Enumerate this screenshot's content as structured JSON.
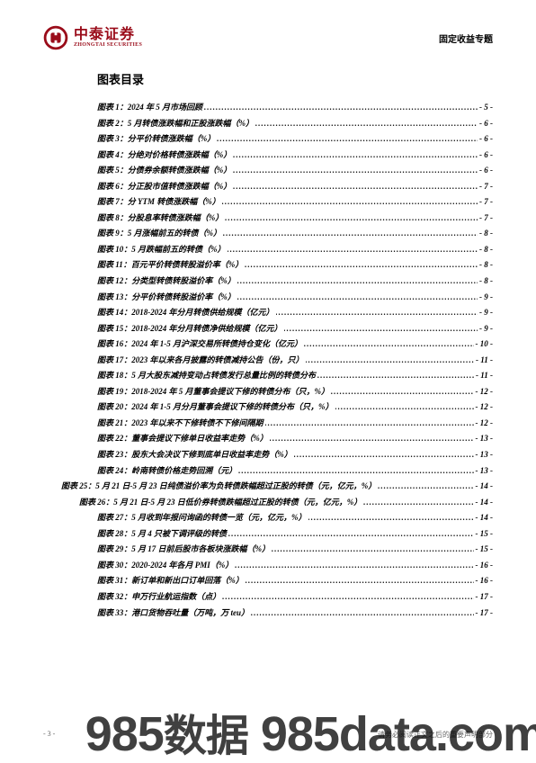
{
  "brand": {
    "cn": "中泰证券",
    "en": "ZHONGTAI SECURITIES",
    "color": "#9a0c1a"
  },
  "header": {
    "doctype": "固定收益专题"
  },
  "toc": {
    "title": "图表目录",
    "entries": [
      {
        "label": "图表 1：2024 年 5 月市场回顾",
        "page": "- 5 -",
        "outdent": 0
      },
      {
        "label": "图表 2：5 月转债涨跌幅和正股涨跌幅（%）",
        "page": "- 6 -",
        "outdent": 0
      },
      {
        "label": "图表 3：分平价转债涨跌幅（%）",
        "page": "- 6 -",
        "outdent": 0
      },
      {
        "label": "图表 4：分绝对价格转债涨跌幅（%）",
        "page": "- 6 -",
        "outdent": 0
      },
      {
        "label": "图表 5：分债券余额转债涨跌幅（%）",
        "page": "- 6 -",
        "outdent": 0
      },
      {
        "label": "图表 6：分正股市值转债涨跌幅（%）",
        "page": "- 7 -",
        "outdent": 0
      },
      {
        "label": "图表 7：分 YTM 转债涨跌幅（%）",
        "page": "- 7 -",
        "outdent": 0
      },
      {
        "label": "图表 8：分股息率转债涨跌幅（%）",
        "page": "- 7 -",
        "outdent": 0
      },
      {
        "label": "图表 9：5 月涨幅前五的转债（%）",
        "page": "- 8 -",
        "outdent": 0
      },
      {
        "label": "图表 10：5 月跌幅前五的转债（%）",
        "page": "- 8 -",
        "outdent": 0
      },
      {
        "label": "图表 11：百元平价转债转股溢价率（%）",
        "page": "- 8 -",
        "outdent": 0
      },
      {
        "label": "图表 12：分类型转债转股溢价率（%）",
        "page": "- 8 -",
        "outdent": 0
      },
      {
        "label": "图表 13：分平价转债转股溢价率（%）",
        "page": "- 9 -",
        "outdent": 0
      },
      {
        "label": "图表 14：2018-2024 年分月转债供给规模（亿元）",
        "page": "- 9 -",
        "outdent": 0
      },
      {
        "label": "图表 15：2018-2024 年分月转债净供给规模（亿元）",
        "page": "- 9 -",
        "outdent": 0
      },
      {
        "label": "图表 16：2024 年 1-5 月沪深交易所转债持仓变化（亿元）",
        "page": "- 10 -",
        "outdent": 0
      },
      {
        "label": "图表 17：2023 年以来各月披露的转债减持公告（份，只）",
        "page": "- 11 -",
        "outdent": 0
      },
      {
        "label": "图表 18：5 月大股东减持变动占转债发行总量比例的转债分布",
        "page": "- 11 -",
        "outdent": 0
      },
      {
        "label": "图表 19：2018-2024 年 5 月董事会提议下修的转债分布（只，%）",
        "page": "- 12 -",
        "outdent": 0
      },
      {
        "label": "图表 20：2024 年 1-5 月分月董事会提议下修的转债分布（只，%）",
        "page": "- 12 -",
        "outdent": 0
      },
      {
        "label": "图表 21：2023 年以来不下修转债不下修间隔期",
        "page": "- 12 -",
        "outdent": 0
      },
      {
        "label": "图表 22：董事会提议下修单日收益率走势（%）",
        "page": "- 13 -",
        "outdent": 0
      },
      {
        "label": "图表 23：股东大会决议下修到底单日收益率走势（%）",
        "page": "- 13 -",
        "outdent": 0
      },
      {
        "label": "图表 24：岭南转债价格走势回溯（元）",
        "page": "- 13 -",
        "outdent": 0
      },
      {
        "label": "图表 25：5 月 21 日-5 月 23 日纯债溢价率为负转债跌幅超过正股的转债（元，亿元，%）",
        "page": "- 14 -",
        "outdent": 1
      },
      {
        "label": "图表 26：5 月 21 日-5 月 23 日低价券转债跌幅超过正股的转债（元，亿元，%）",
        "page": "- 14 -",
        "outdent": 2
      },
      {
        "label": "图表 27：5 月收到年报问询函的转债一览（元，亿元，%）",
        "page": "- 14 -",
        "outdent": 0
      },
      {
        "label": "图表 28：5 月 4 只被下调评级的转债",
        "page": "- 15 -",
        "outdent": 0
      },
      {
        "label": "图表 29：5 月 17 日前后股市各板块涨跌幅（%）",
        "page": "- 15 -",
        "outdent": 0
      },
      {
        "label": "图表 30：2020-2024 年各月 PMI（%）",
        "page": "- 16 -",
        "outdent": 0
      },
      {
        "label": "图表 31：新订单和新出口订单回落（%）",
        "page": "- 16 -",
        "outdent": 0
      },
      {
        "label": "图表 32：申万行业航运指数（点）",
        "page": "- 17 -",
        "outdent": 0
      },
      {
        "label": "图表 33：港口货物吞吐量（万吨，万 teu）",
        "page": "- 17 -",
        "outdent": 0
      }
    ]
  },
  "footer": {
    "left": "- 3 -",
    "right": "请务必阅读正文之后的重要声明部分"
  },
  "watermark": {
    "num": "985",
    "cn": "数据",
    "domain": " 985data.com"
  }
}
